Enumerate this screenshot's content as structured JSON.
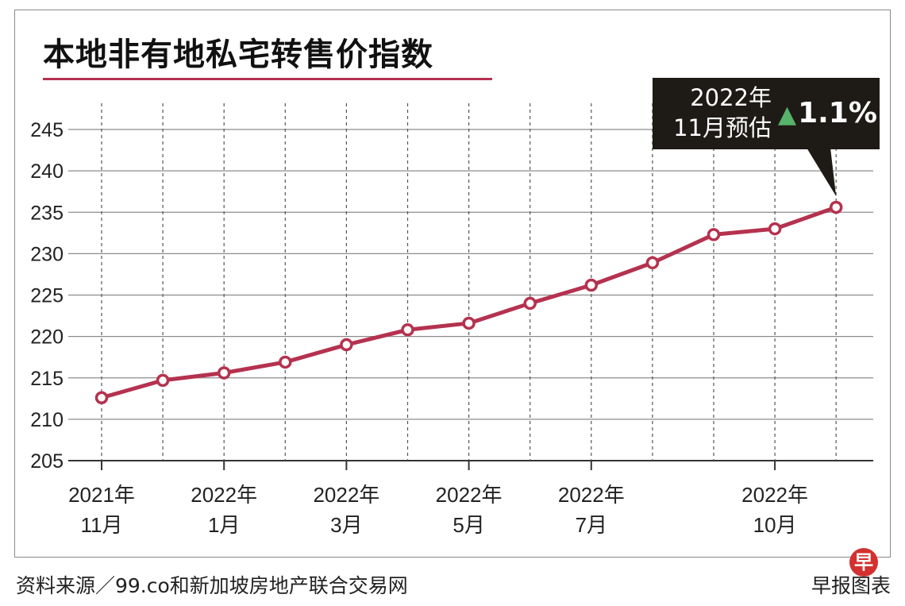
{
  "title": "本地非有地私宅转售价指数",
  "callout": {
    "date_line1": "2022年",
    "date_line2": "11月预估",
    "change": "1.1%",
    "direction": "up"
  },
  "source": "资料来源／99.co和新加坡房地产联合交易网",
  "credit": "早报图表",
  "logo_text": "早",
  "colors": {
    "line": "#b5324f",
    "title_rule": "#b5324f",
    "callout_bg": "#1e1b17",
    "up_arrow": "#57b26a"
  },
  "chart_data": {
    "type": "line",
    "title": "本地非有地私宅转售价指数",
    "xlabel": "",
    "ylabel": "",
    "ylim": [
      205,
      245
    ],
    "yticks": [
      205,
      210,
      215,
      220,
      225,
      230,
      235,
      240,
      245
    ],
    "grid": true,
    "x": [
      "2021-11",
      "2021-12",
      "2022-01",
      "2022-02",
      "2022-03",
      "2022-04",
      "2022-05",
      "2022-06",
      "2022-07",
      "2022-08",
      "2022-09",
      "2022-10",
      "2022-11"
    ],
    "x_tick_labels": [
      {
        "index": 0,
        "line1": "2021年",
        "line2": "11月"
      },
      {
        "index": 2,
        "line1": "2022年",
        "line2": "1月"
      },
      {
        "index": 4,
        "line1": "2022年",
        "line2": "3月"
      },
      {
        "index": 6,
        "line1": "2022年",
        "line2": "5月"
      },
      {
        "index": 8,
        "line1": "2022年",
        "line2": "7月"
      },
      {
        "index": 11,
        "line1": "2022年",
        "line2": "10月"
      }
    ],
    "series": [
      {
        "values": [
          212.6,
          214.7,
          215.6,
          216.9,
          219.0,
          220.8,
          221.6,
          224.0,
          226.2,
          228.9,
          232.3,
          233.0,
          235.6
        ]
      }
    ]
  }
}
